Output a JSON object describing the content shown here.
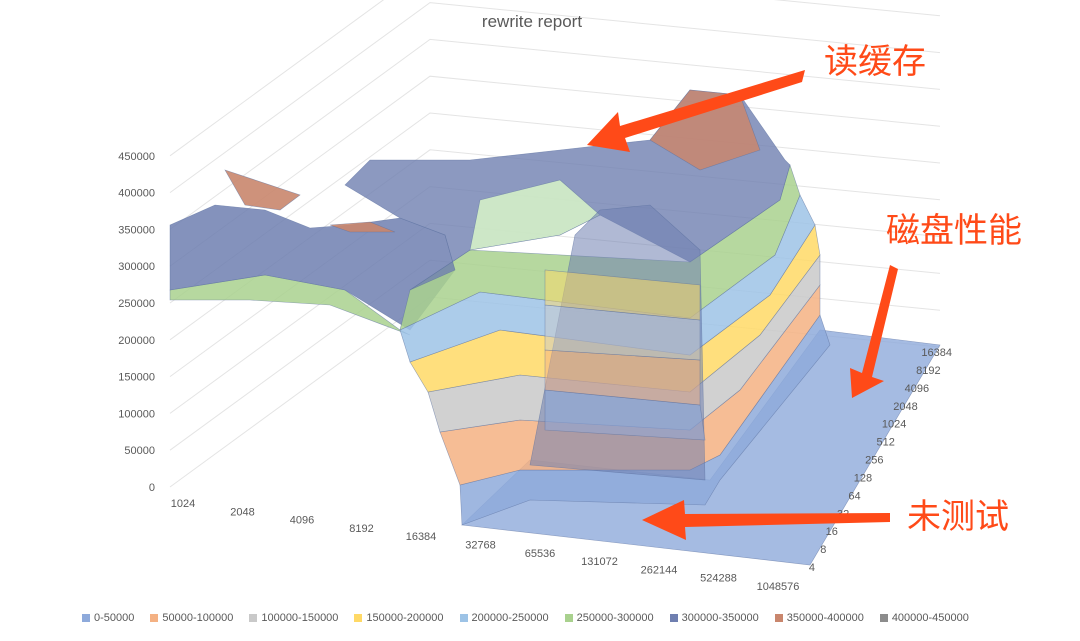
{
  "chart_data": {
    "type": "3d-surface",
    "title": "rewrite report",
    "z_axis_ticks": [
      "450000",
      "400000",
      "350000",
      "300000",
      "250000",
      "200000",
      "150000",
      "100000",
      "50000",
      "0"
    ],
    "x_axis_ticks": [
      "1024",
      "2048",
      "4096",
      "8192",
      "16384",
      "32768",
      "65536",
      "131072",
      "262144",
      "524288",
      "1048576"
    ],
    "y_axis_ticks": [
      "16384",
      "8192",
      "4096",
      "2048",
      "1024",
      "512",
      "256",
      "128",
      "64",
      "32",
      "16",
      "8",
      "4"
    ],
    "zlim": [
      0,
      450000
    ],
    "grid": true,
    "legend_placement": "bottom",
    "legend": [
      {
        "label": "0-50000",
        "color": "#8eaadb"
      },
      {
        "label": "50000-100000",
        "color": "#f4b183"
      },
      {
        "label": "100000-150000",
        "color": "#c9c9c9"
      },
      {
        "label": "150000-200000",
        "color": "#ffd966"
      },
      {
        "label": "200000-250000",
        "color": "#9dc3e6"
      },
      {
        "label": "250000-300000",
        "color": "#a9d18e"
      },
      {
        "label": "300000-350000",
        "color": "#6f7fb0"
      },
      {
        "label": "350000-400000",
        "color": "#c9866d"
      },
      {
        "label": "400000-450000",
        "color": "#8c8c8c"
      }
    ]
  },
  "annotations": {
    "read_cache": "读缓存",
    "disk_perf": "磁盘性能",
    "untested": "未测试",
    "arrow_color": "#ff4a18"
  }
}
